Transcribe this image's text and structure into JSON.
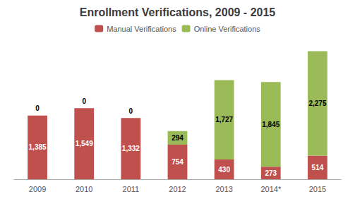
{
  "chart_data": {
    "type": "bar",
    "title": "Enrollment Verifications, 2009 - 2015",
    "categories": [
      "2009",
      "2010",
      "2011",
      "2012",
      "2013",
      "2014*",
      "2015"
    ],
    "series": [
      {
        "name": "Manual Verifications",
        "color": "#c0504d",
        "values": [
          1385,
          1549,
          1332,
          754,
          430,
          273,
          514
        ],
        "value_labels": [
          "1,385",
          "1,549",
          "1,332",
          "754",
          "430",
          "273",
          "514"
        ]
      },
      {
        "name": "Online Verifications",
        "color": "#9bbb59",
        "values": [
          0,
          0,
          0,
          294,
          1727,
          1845,
          2275
        ],
        "value_labels": [
          "0",
          "0",
          "0",
          "294",
          "1,727",
          "1,845",
          "2,275"
        ]
      }
    ],
    "stacked": true,
    "data_labels": true,
    "ylim": [
      0,
      2950
    ],
    "grid": false,
    "legend": "top",
    "tick_labels": "x"
  }
}
